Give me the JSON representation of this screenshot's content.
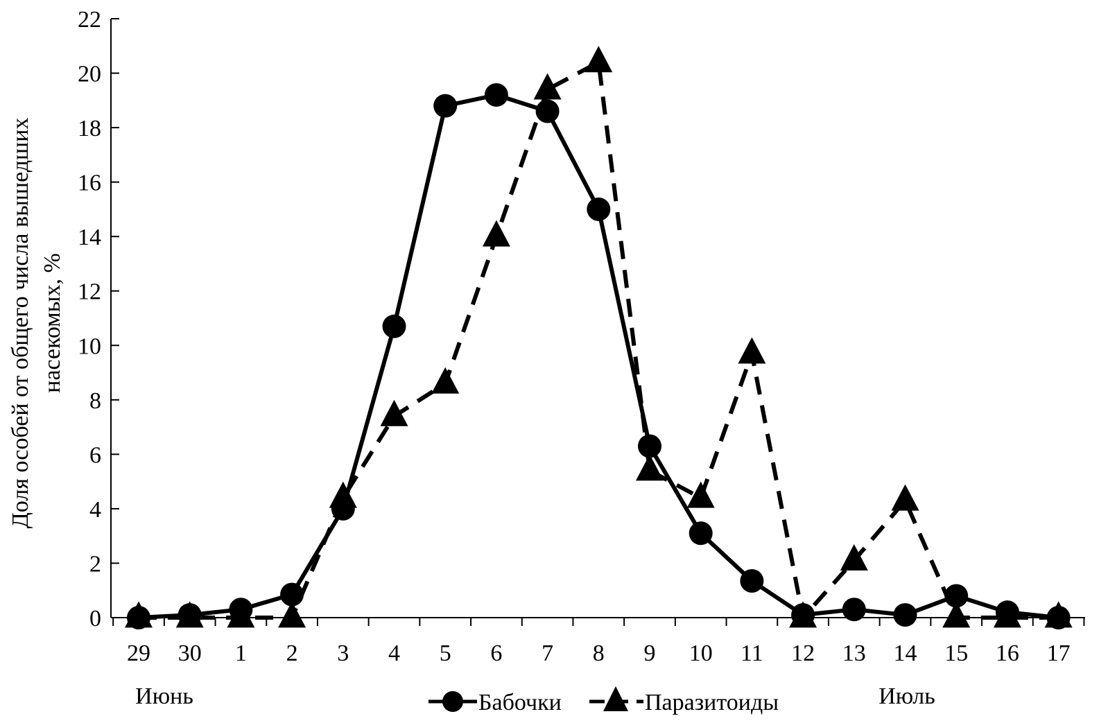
{
  "chart_data": {
    "type": "line",
    "title": "",
    "xlabel": "",
    "ylabel_line1": "Доля особей от общего числа вышедших",
    "ylabel_line2": "насекомых, %",
    "categories": [
      "29",
      "30",
      "1",
      "2",
      "3",
      "4",
      "5",
      "6",
      "7",
      "8",
      "9",
      "10",
      "11",
      "12",
      "13",
      "14",
      "15",
      "16",
      "17"
    ],
    "month_labels": {
      "june": "Июнь",
      "july": "Июль"
    },
    "ylim": [
      0,
      22
    ],
    "yticks": [
      0,
      2,
      4,
      6,
      8,
      10,
      12,
      14,
      16,
      18,
      20,
      22
    ],
    "grid": false,
    "legend_position": "bottom-center",
    "series": [
      {
        "name": "Бабочки",
        "marker": "circle",
        "line_style": "solid",
        "color": "#000000",
        "values": [
          0.0,
          0.1,
          0.3,
          0.85,
          4.0,
          10.7,
          18.8,
          19.2,
          18.6,
          15.0,
          6.3,
          3.1,
          1.35,
          0.1,
          0.3,
          0.1,
          0.8,
          0.2,
          0.0
        ]
      },
      {
        "name": "Паразитоиды",
        "marker": "triangle",
        "line_style": "dashed",
        "color": "#000000",
        "values": [
          0.0,
          0.0,
          0.0,
          0.0,
          4.4,
          7.4,
          8.6,
          14.0,
          19.4,
          20.4,
          5.4,
          4.4,
          9.7,
          0.0,
          2.1,
          4.3,
          0.0,
          0.0,
          0.0
        ]
      }
    ]
  }
}
